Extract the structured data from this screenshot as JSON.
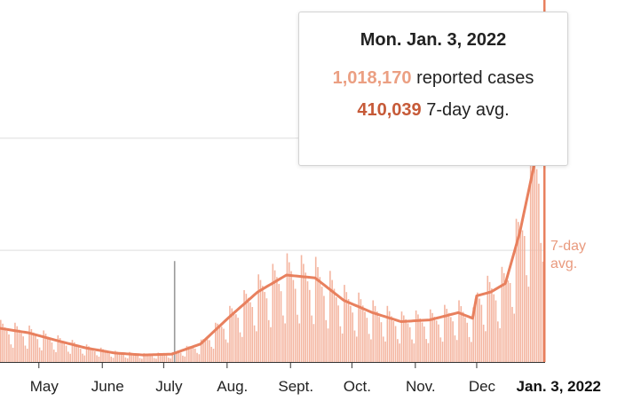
{
  "chart_data": {
    "type": "bar",
    "x_axis": {
      "ticks": [
        {
          "label": "May",
          "date": "2021-05-01"
        },
        {
          "label": "June",
          "date": "2021-06-01"
        },
        {
          "label": "July",
          "date": "2021-07-01"
        },
        {
          "label": "Aug.",
          "date": "2021-08-01"
        },
        {
          "label": "Sept.",
          "date": "2021-09-01"
        },
        {
          "label": "Oct.",
          "date": "2021-10-01"
        },
        {
          "label": "Nov.",
          "date": "2021-11-01"
        },
        {
          "label": "Dec",
          "date": "2021-12-01"
        }
      ],
      "highlight_label": "Jan. 3, 2022",
      "range": [
        "2021-04-12",
        "2022-01-03"
      ]
    },
    "y_axis": {
      "range": [
        0,
        500000
      ],
      "gridlines": [
        200000,
        400000
      ]
    },
    "legend": {
      "avg_label_line1": "7-day",
      "avg_label_line2": "avg."
    },
    "series": [
      {
        "kind": "daily-bars",
        "weekly_avg": [
          [
            "2021-04-12",
            60000
          ],
          [
            "2021-04-26",
            52000
          ],
          [
            "2021-05-10",
            38000
          ],
          [
            "2021-05-24",
            25000
          ],
          [
            "2021-06-07",
            16000
          ],
          [
            "2021-06-21",
            12500
          ],
          [
            "2021-07-05",
            14000
          ],
          [
            "2021-07-19",
            32000
          ],
          [
            "2021-08-02",
            80000
          ],
          [
            "2021-08-16",
            125000
          ],
          [
            "2021-08-30",
            155000
          ],
          [
            "2021-09-13",
            150000
          ],
          [
            "2021-09-27",
            110000
          ],
          [
            "2021-10-11",
            88000
          ],
          [
            "2021-10-25",
            72000
          ],
          [
            "2021-11-08",
            75000
          ],
          [
            "2021-11-22",
            88000
          ],
          [
            "2021-12-01",
            118000
          ],
          [
            "2021-12-08",
            125000
          ],
          [
            "2021-12-15",
            140000
          ],
          [
            "2021-12-22",
            230000
          ],
          [
            "2021-12-29",
            350000
          ],
          [
            "2022-01-03",
            410039
          ]
        ],
        "spike": [
          "2021-07-06",
          180000
        ],
        "final_day": [
          "2022-01-03",
          1018170
        ]
      },
      {
        "kind": "7-day-avg-line",
        "points": [
          [
            "2021-04-12",
            60000
          ],
          [
            "2021-04-26",
            52000
          ],
          [
            "2021-05-10",
            38000
          ],
          [
            "2021-05-24",
            25000
          ],
          [
            "2021-06-07",
            16000
          ],
          [
            "2021-06-21",
            12500
          ],
          [
            "2021-07-05",
            14000
          ],
          [
            "2021-07-19",
            32000
          ],
          [
            "2021-08-02",
            80000
          ],
          [
            "2021-08-16",
            125000
          ],
          [
            "2021-08-30",
            155000
          ],
          [
            "2021-09-13",
            150000
          ],
          [
            "2021-09-27",
            110000
          ],
          [
            "2021-10-11",
            88000
          ],
          [
            "2021-10-25",
            72000
          ],
          [
            "2021-11-08",
            75000
          ],
          [
            "2021-11-22",
            88000
          ],
          [
            "2021-11-29",
            78000
          ],
          [
            "2021-12-01",
            118000
          ],
          [
            "2021-12-08",
            125000
          ],
          [
            "2021-12-15",
            140000
          ],
          [
            "2021-12-22",
            230000
          ],
          [
            "2021-12-29",
            350000
          ],
          [
            "2022-01-03",
            410039
          ]
        ]
      }
    ],
    "colors": {
      "bars": "#f4b5a0",
      "line": "#e8805e",
      "tooltip_light": "#eb9f82",
      "tooltip_dark": "#c65a38",
      "gridline": "#dddddd"
    }
  },
  "tooltip": {
    "date": "Mon. Jan. 3, 2022",
    "reported_value": "1,018,170",
    "reported_text": "reported cases",
    "avg_value": "410,039",
    "avg_text": "7-day avg."
  }
}
